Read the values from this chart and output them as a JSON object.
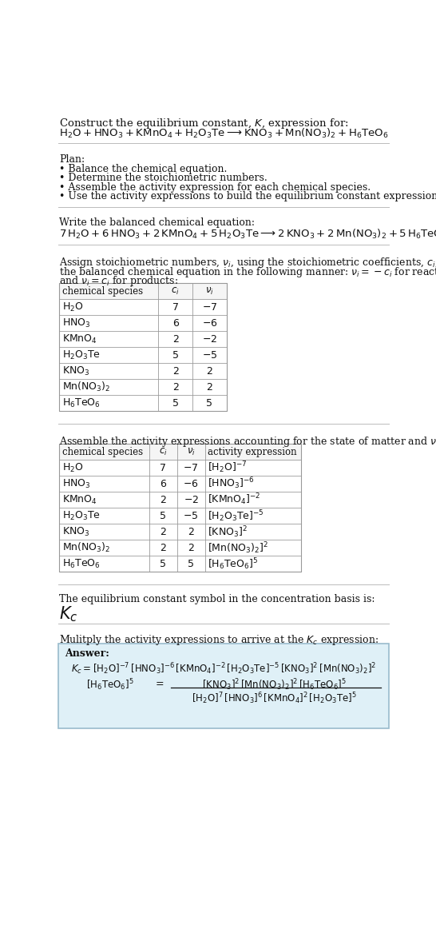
{
  "title_text": "Construct the equilibrium constant, $K$, expression for:",
  "plan_header": "Plan:",
  "plan_items": [
    "• Balance the chemical equation.",
    "• Determine the stoichiometric numbers.",
    "• Assemble the activity expression for each chemical species.",
    "• Use the activity expressions to build the equilibrium constant expression."
  ],
  "balanced_header": "Write the balanced chemical equation:",
  "stoich_header_line1": "Assign stoichiometric numbers, $\\nu_i$, using the stoichiometric coefficients, $c_i$, from",
  "stoich_header_line2": "the balanced chemical equation in the following manner: $\\nu_i = -c_i$ for reactants",
  "stoich_header_line3": "and $\\nu_i = c_i$ for products:",
  "table1_headers": [
    "chemical species",
    "$c_i$",
    "$\\nu_i$"
  ],
  "table1_col1": [
    "$\\mathrm{H_2O}$",
    "$\\mathrm{HNO_3}$",
    "$\\mathrm{KMnO_4}$",
    "$\\mathrm{H_2O_3Te}$",
    "$\\mathrm{KNO_3}$",
    "$\\mathrm{Mn(NO_3)_2}$",
    "$\\mathrm{H_6TeO_6}$"
  ],
  "table1_col2": [
    "7",
    "6",
    "2",
    "5",
    "2",
    "2",
    "5"
  ],
  "table1_col3": [
    "$-7$",
    "$-6$",
    "$-2$",
    "$-5$",
    "2",
    "2",
    "5"
  ],
  "activity_header": "Assemble the activity expressions accounting for the state of matter and $\\nu_i$:",
  "table2_headers": [
    "chemical species",
    "$c_i$",
    "$\\nu_i$",
    "activity expression"
  ],
  "table2_col1": [
    "$\\mathrm{H_2O}$",
    "$\\mathrm{HNO_3}$",
    "$\\mathrm{KMnO_4}$",
    "$\\mathrm{H_2O_3Te}$",
    "$\\mathrm{KNO_3}$",
    "$\\mathrm{Mn(NO_3)_2}$",
    "$\\mathrm{H_6TeO_6}$"
  ],
  "table2_col2": [
    "7",
    "6",
    "2",
    "5",
    "2",
    "2",
    "5"
  ],
  "table2_col3": [
    "$-7$",
    "$-6$",
    "$-2$",
    "$-5$",
    "2",
    "2",
    "5"
  ],
  "table2_col4": [
    "$[\\mathrm{H_2O}]^{-7}$",
    "$[\\mathrm{HNO_3}]^{-6}$",
    "$[\\mathrm{KMnO_4}]^{-2}$",
    "$[\\mathrm{H_2O_3Te}]^{-5}$",
    "$[\\mathrm{KNO_3}]^2$",
    "$[\\mathrm{Mn(NO_3)_2}]^2$",
    "$[\\mathrm{H_6TeO_6}]^5$"
  ],
  "kc_header": "The equilibrium constant symbol in the concentration basis is:",
  "multiply_header": "Mulitply the activity expressions to arrive at the $K_c$ expression:",
  "bg_color": "#ffffff",
  "answer_bg_color": "#dff0f7",
  "table_line_color": "#999999",
  "text_color": "#111111",
  "answer_border_color": "#99bbcc"
}
